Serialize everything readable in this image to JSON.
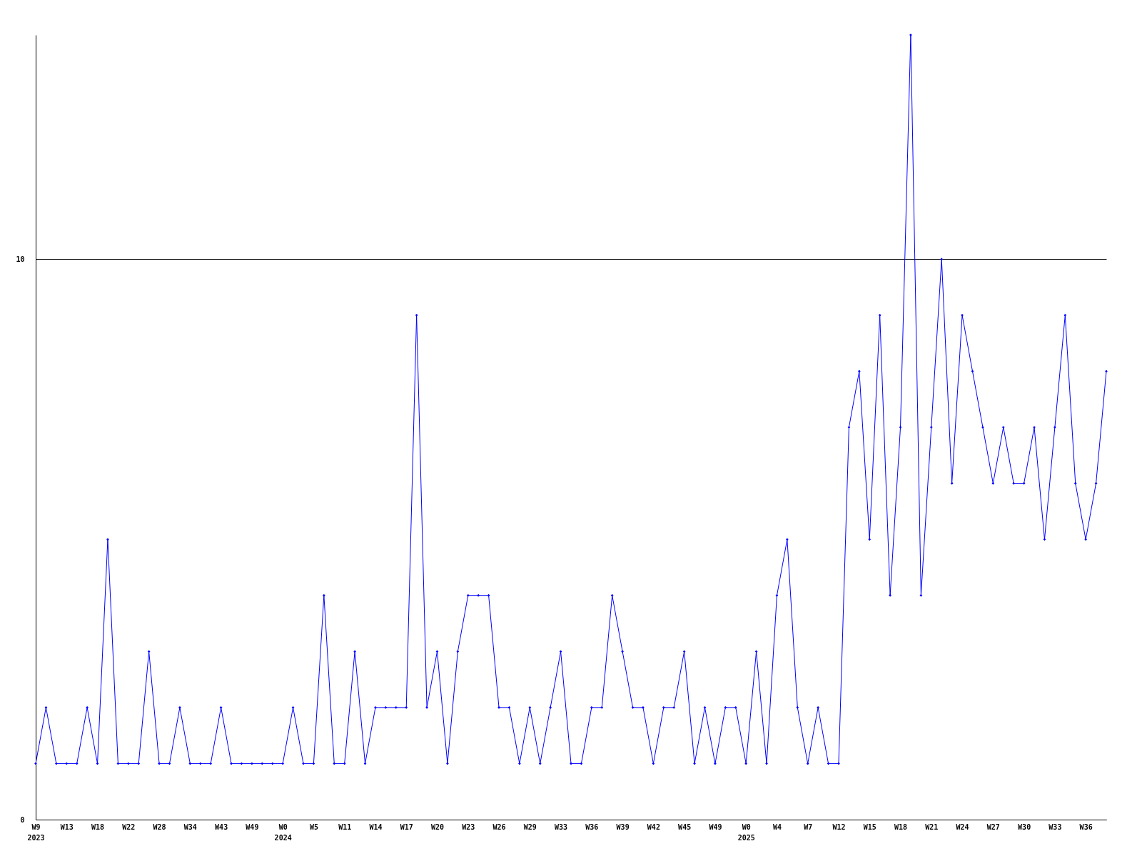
{
  "chart_data": {
    "type": "line",
    "categories": [
      "W9\n2023",
      null,
      null,
      "W13",
      null,
      null,
      "W18",
      null,
      null,
      "W22",
      null,
      null,
      "W28",
      null,
      null,
      "W34",
      null,
      null,
      "W43",
      null,
      null,
      "W49",
      null,
      null,
      "W0\n2024",
      null,
      null,
      "W5",
      null,
      null,
      "W11",
      null,
      null,
      "W14",
      null,
      null,
      "W17",
      null,
      null,
      "W20",
      null,
      null,
      "W23",
      null,
      null,
      "W26",
      null,
      null,
      "W29",
      null,
      null,
      "W33",
      null,
      null,
      "W36",
      null,
      null,
      "W39",
      null,
      null,
      "W42",
      null,
      null,
      "W45",
      null,
      null,
      "W49",
      null,
      null,
      "W0\n2025",
      null,
      null,
      "W4",
      null,
      null,
      "W7",
      null,
      null,
      "W12",
      null,
      null,
      "W15",
      null,
      null,
      "W18",
      null,
      null,
      "W21",
      null,
      null,
      "W24",
      null,
      null,
      "W27",
      null,
      null,
      "W30",
      null,
      null,
      "W33",
      null,
      null,
      "W36",
      null,
      null
    ],
    "series": [
      {
        "color": "#0000ff",
        "values": [
          1,
          2,
          1,
          1,
          1,
          2,
          1,
          5,
          1,
          1,
          1,
          3,
          1,
          1,
          2,
          1,
          1,
          1,
          2,
          1,
          1,
          1,
          1,
          1,
          1,
          2,
          1,
          1,
          4,
          1,
          1,
          3,
          1,
          2,
          2,
          2,
          2,
          9,
          2,
          3,
          1,
          3,
          4,
          4,
          4,
          2,
          2,
          1,
          2,
          1,
          2,
          3,
          1,
          1,
          2,
          2,
          4,
          3,
          2,
          2,
          1,
          2,
          2,
          3,
          1,
          2,
          1,
          2,
          2,
          1,
          3,
          1,
          4,
          5,
          2,
          1,
          2,
          1,
          1,
          7,
          8,
          5,
          9,
          4,
          7,
          14,
          4,
          7,
          10,
          6,
          9,
          8,
          7,
          6,
          7,
          6,
          6,
          7,
          5,
          7,
          9,
          6,
          5,
          6,
          8
        ]
      }
    ],
    "ylim": [
      0,
      14
    ],
    "yticks": [
      0,
      10
    ],
    "grid": "y",
    "marker": "diamond",
    "line_style": "solid"
  }
}
